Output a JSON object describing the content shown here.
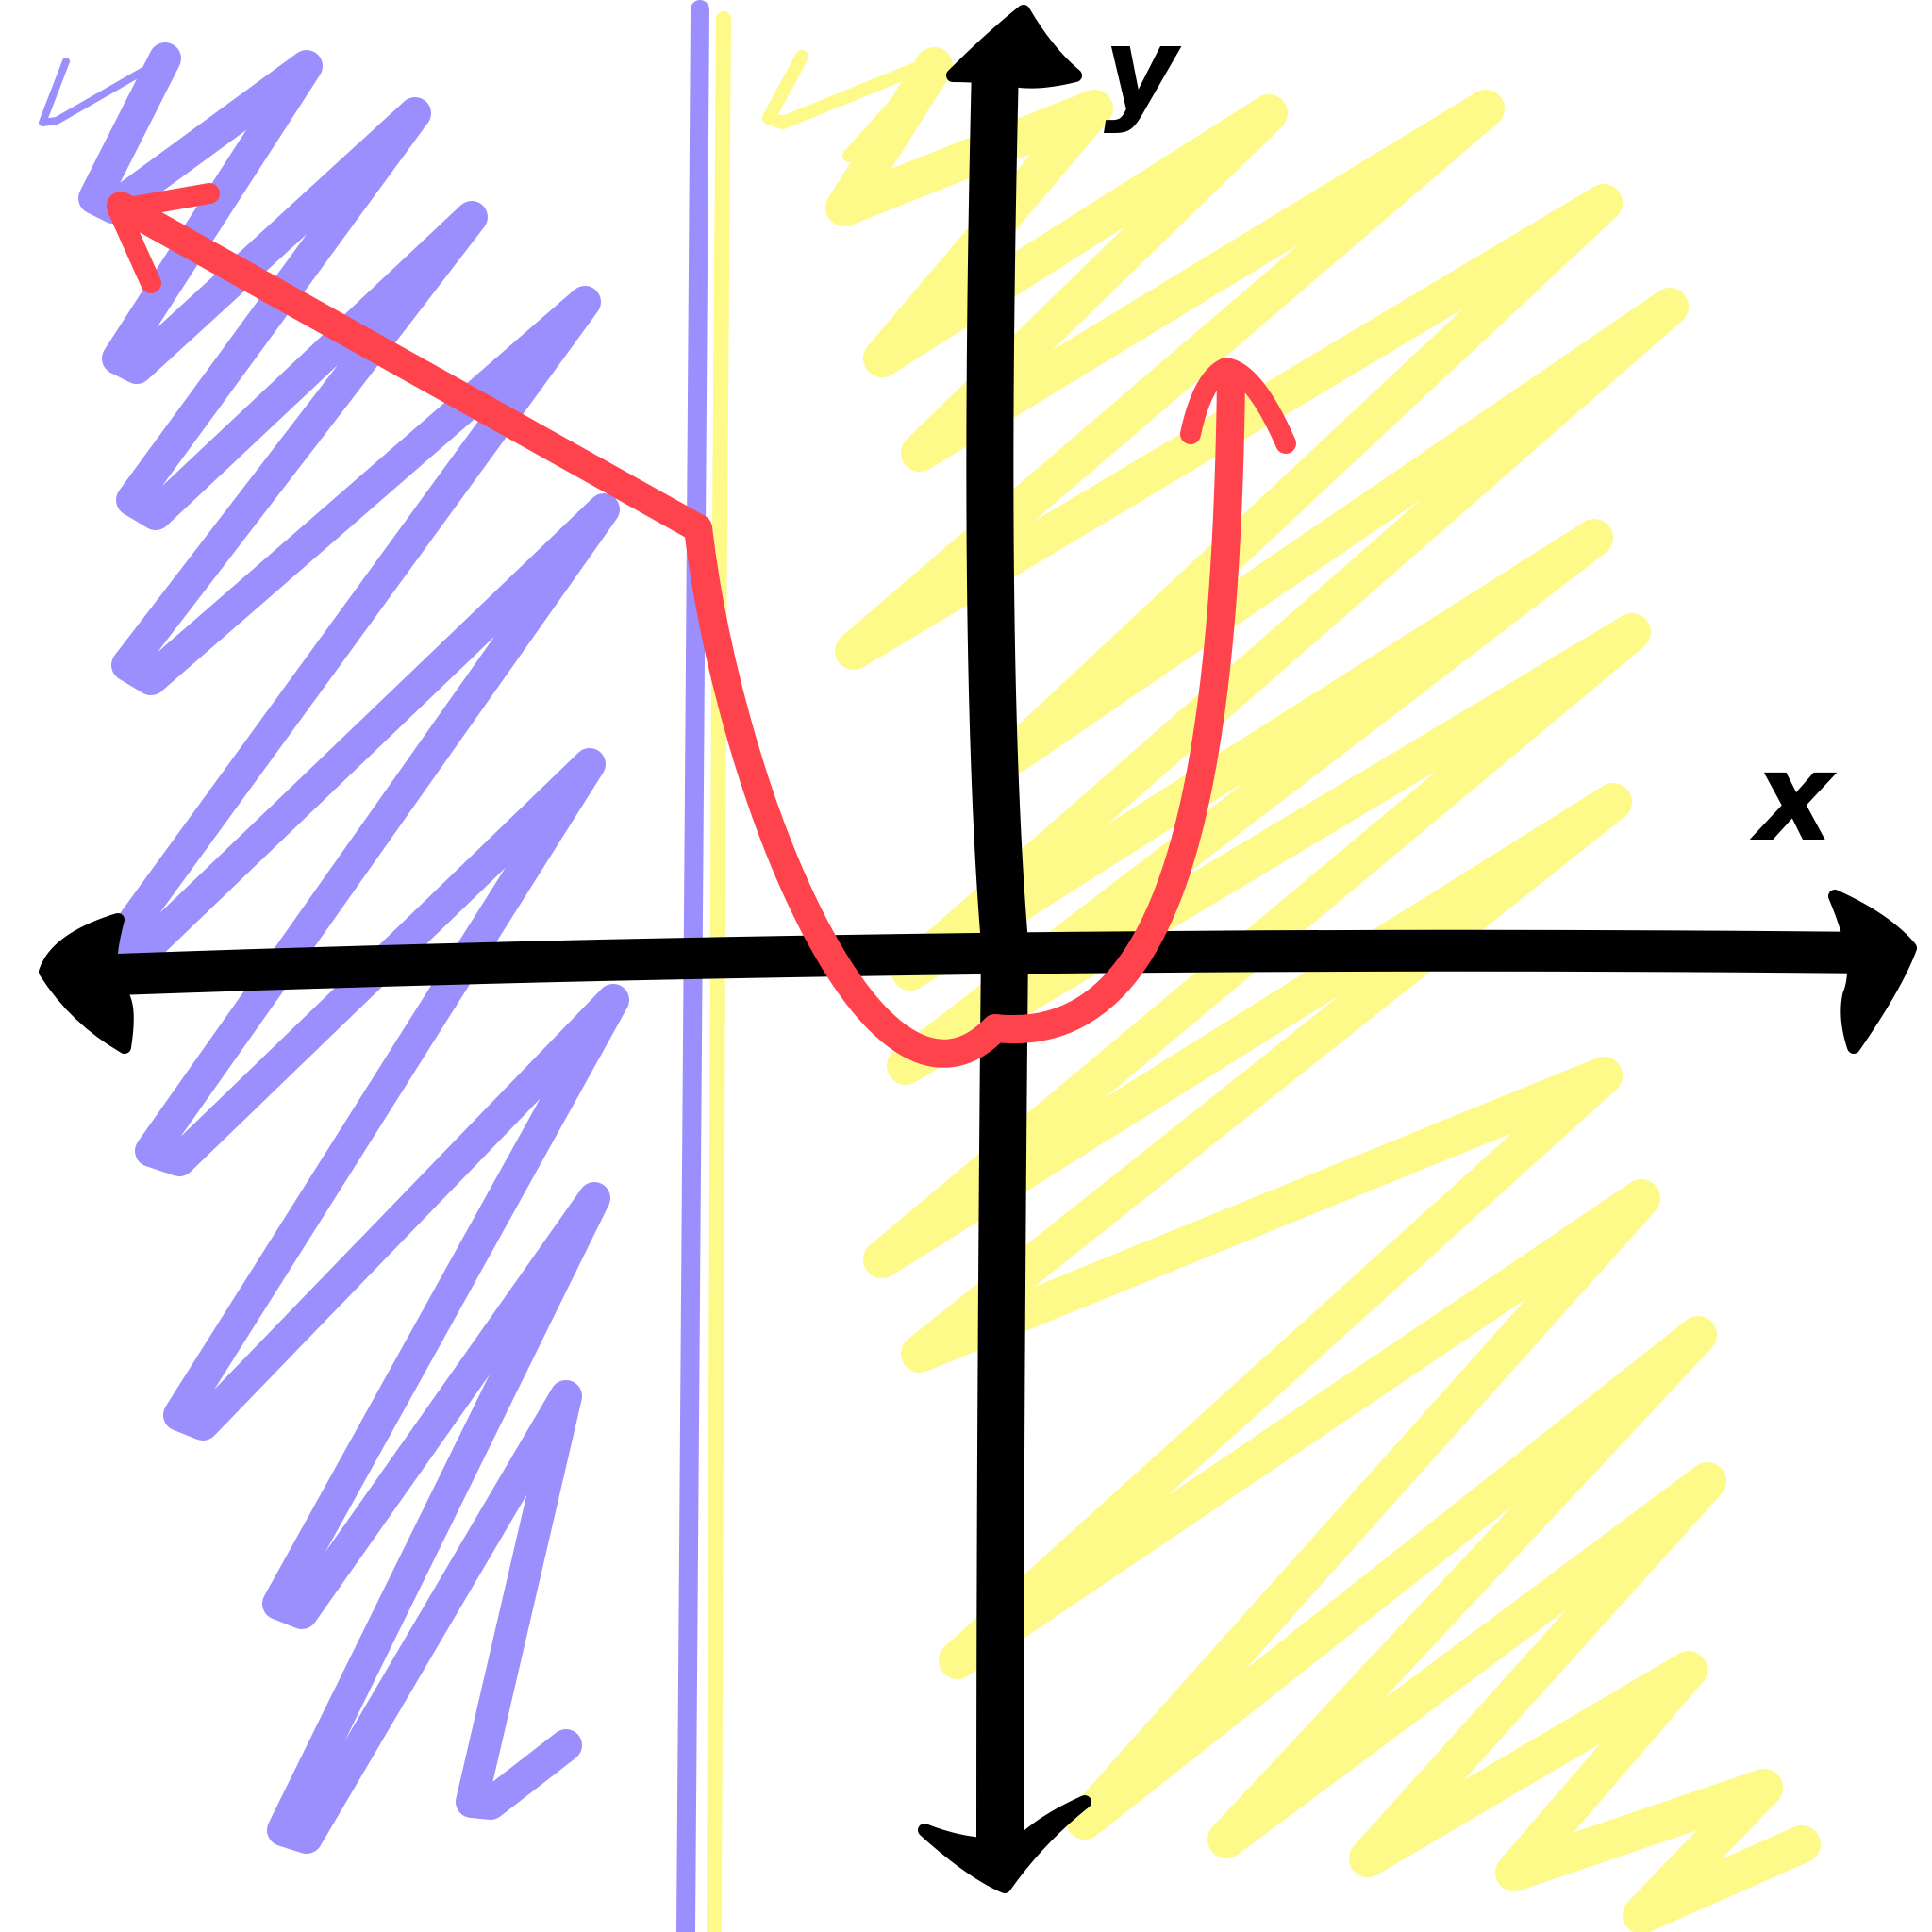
{
  "labels": {
    "x_axis": "x",
    "y_axis": "y"
  },
  "colors": {
    "axes": "#000000",
    "left_region": "#9b8ffd",
    "right_region": "#fdfa8a",
    "curve": "#ff434d",
    "background": "#ffffff"
  },
  "icons": {
    "x_axis": "double-arrow-horizontal",
    "y_axis": "double-arrow-vertical",
    "curve_ends": "arrowhead"
  }
}
